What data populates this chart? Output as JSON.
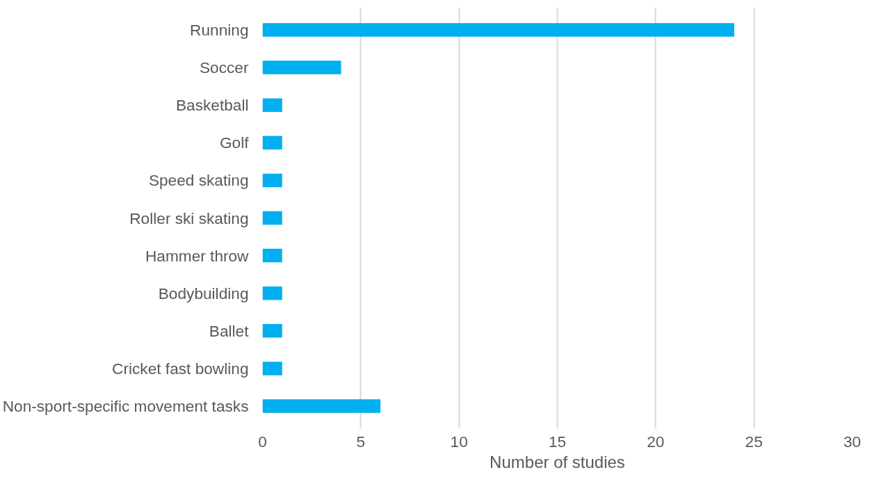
{
  "chart_data": {
    "type": "bar",
    "orientation": "horizontal",
    "xlabel": "Number of studies",
    "categories": [
      "Running",
      "Soccer",
      "Basketball",
      "Golf",
      "Speed skating",
      "Roller ski skating",
      "Hammer throw",
      "Bodybuilding",
      "Ballet",
      "Cricket fast bowling",
      "Non-sport-specific movement tasks"
    ],
    "values": [
      24,
      4,
      1,
      1,
      1,
      1,
      1,
      1,
      1,
      1,
      6
    ],
    "color": "#00b0f0",
    "xlim": [
      0,
      30
    ],
    "xticks": [
      0,
      5,
      10,
      15,
      20,
      25,
      30
    ],
    "grid": "x"
  }
}
